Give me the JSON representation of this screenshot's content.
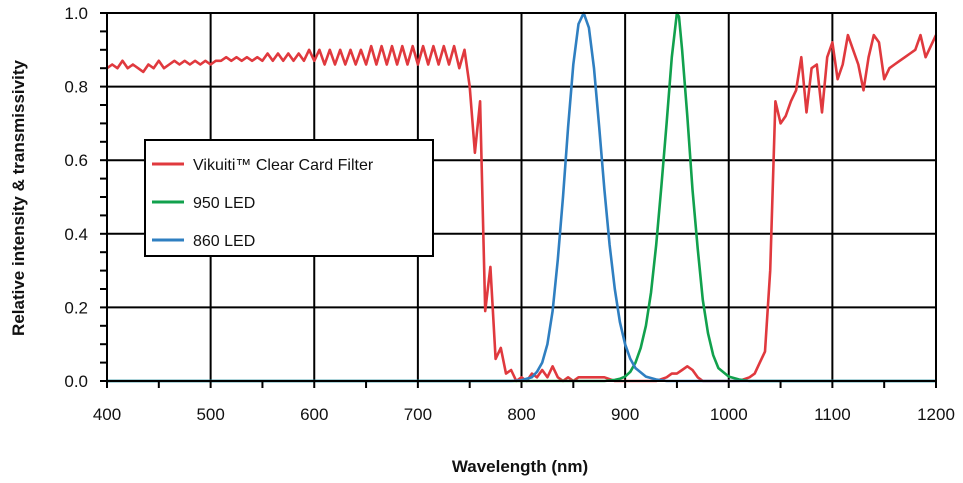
{
  "chart_data": {
    "type": "line",
    "xlabel": "Wavelength (nm)",
    "ylabel": "Relative intensity & transmissivity",
    "xlim": [
      400,
      1200
    ],
    "ylim": [
      0,
      1.0
    ],
    "xticks": [
      "400",
      "500",
      "600",
      "700",
      "800",
      "900",
      "1000",
      "1100",
      "1200"
    ],
    "yticks": [
      "0.0",
      "0.2",
      "0.4",
      "0.6",
      "0.8",
      "1.0"
    ],
    "grid": true,
    "legend_position": "middle-left",
    "series": [
      {
        "name": "Vikuiti™ Clear Card Filter",
        "color": "#e0393e",
        "points": [
          [
            400,
            0.85
          ],
          [
            405,
            0.86
          ],
          [
            410,
            0.85
          ],
          [
            415,
            0.87
          ],
          [
            420,
            0.85
          ],
          [
            425,
            0.86
          ],
          [
            430,
            0.85
          ],
          [
            435,
            0.84
          ],
          [
            440,
            0.86
          ],
          [
            445,
            0.85
          ],
          [
            450,
            0.87
          ],
          [
            455,
            0.85
          ],
          [
            460,
            0.86
          ],
          [
            465,
            0.87
          ],
          [
            470,
            0.86
          ],
          [
            475,
            0.87
          ],
          [
            480,
            0.86
          ],
          [
            485,
            0.87
          ],
          [
            490,
            0.86
          ],
          [
            495,
            0.87
          ],
          [
            500,
            0.86
          ],
          [
            505,
            0.87
          ],
          [
            510,
            0.87
          ],
          [
            515,
            0.88
          ],
          [
            520,
            0.87
          ],
          [
            525,
            0.88
          ],
          [
            530,
            0.87
          ],
          [
            535,
            0.88
          ],
          [
            540,
            0.87
          ],
          [
            545,
            0.88
          ],
          [
            550,
            0.87
          ],
          [
            555,
            0.89
          ],
          [
            560,
            0.87
          ],
          [
            565,
            0.89
          ],
          [
            570,
            0.87
          ],
          [
            575,
            0.89
          ],
          [
            580,
            0.87
          ],
          [
            585,
            0.89
          ],
          [
            590,
            0.87
          ],
          [
            595,
            0.9
          ],
          [
            600,
            0.87
          ],
          [
            605,
            0.9
          ],
          [
            610,
            0.86
          ],
          [
            615,
            0.9
          ],
          [
            620,
            0.86
          ],
          [
            625,
            0.9
          ],
          [
            630,
            0.86
          ],
          [
            635,
            0.9
          ],
          [
            640,
            0.86
          ],
          [
            645,
            0.9
          ],
          [
            650,
            0.86
          ],
          [
            655,
            0.91
          ],
          [
            660,
            0.86
          ],
          [
            665,
            0.91
          ],
          [
            670,
            0.86
          ],
          [
            675,
            0.91
          ],
          [
            680,
            0.86
          ],
          [
            685,
            0.91
          ],
          [
            690,
            0.86
          ],
          [
            695,
            0.91
          ],
          [
            700,
            0.86
          ],
          [
            705,
            0.91
          ],
          [
            710,
            0.86
          ],
          [
            715,
            0.91
          ],
          [
            720,
            0.86
          ],
          [
            725,
            0.91
          ],
          [
            730,
            0.86
          ],
          [
            735,
            0.91
          ],
          [
            740,
            0.85
          ],
          [
            745,
            0.9
          ],
          [
            750,
            0.8
          ],
          [
            755,
            0.62
          ],
          [
            760,
            0.76
          ],
          [
            765,
            0.19
          ],
          [
            770,
            0.31
          ],
          [
            775,
            0.06
          ],
          [
            780,
            0.09
          ],
          [
            785,
            0.02
          ],
          [
            790,
            0.03
          ],
          [
            795,
            0.0
          ],
          [
            800,
            0.01
          ],
          [
            805,
            0.0
          ],
          [
            810,
            0.02
          ],
          [
            815,
            0.01
          ],
          [
            820,
            0.03
          ],
          [
            825,
            0.01
          ],
          [
            830,
            0.04
          ],
          [
            835,
            0.01
          ],
          [
            840,
            0.0
          ],
          [
            845,
            0.01
          ],
          [
            850,
            0.0
          ],
          [
            855,
            0.01
          ],
          [
            860,
            0.01
          ],
          [
            870,
            0.01
          ],
          [
            880,
            0.01
          ],
          [
            890,
            0.0
          ],
          [
            900,
            0.0
          ],
          [
            910,
            0.0
          ],
          [
            920,
            0.0
          ],
          [
            930,
            0.0
          ],
          [
            940,
            0.01
          ],
          [
            945,
            0.02
          ],
          [
            950,
            0.02
          ],
          [
            955,
            0.03
          ],
          [
            960,
            0.04
          ],
          [
            965,
            0.03
          ],
          [
            970,
            0.01
          ],
          [
            975,
            0.0
          ],
          [
            980,
            0.0
          ],
          [
            990,
            0.0
          ],
          [
            1000,
            0.0
          ],
          [
            1010,
            0.0
          ],
          [
            1020,
            0.01
          ],
          [
            1025,
            0.02
          ],
          [
            1030,
            0.05
          ],
          [
            1035,
            0.08
          ],
          [
            1040,
            0.3
          ],
          [
            1045,
            0.76
          ],
          [
            1050,
            0.7
          ],
          [
            1055,
            0.72
          ],
          [
            1060,
            0.76
          ],
          [
            1065,
            0.79
          ],
          [
            1070,
            0.88
          ],
          [
            1075,
            0.73
          ],
          [
            1080,
            0.85
          ],
          [
            1085,
            0.86
          ],
          [
            1090,
            0.73
          ],
          [
            1095,
            0.88
          ],
          [
            1100,
            0.92
          ],
          [
            1105,
            0.82
          ],
          [
            1110,
            0.86
          ],
          [
            1115,
            0.94
          ],
          [
            1120,
            0.9
          ],
          [
            1125,
            0.86
          ],
          [
            1130,
            0.79
          ],
          [
            1135,
            0.88
          ],
          [
            1140,
            0.94
          ],
          [
            1145,
            0.92
          ],
          [
            1150,
            0.82
          ],
          [
            1155,
            0.85
          ],
          [
            1160,
            0.86
          ],
          [
            1165,
            0.87
          ],
          [
            1170,
            0.88
          ],
          [
            1175,
            0.89
          ],
          [
            1180,
            0.9
          ],
          [
            1185,
            0.94
          ],
          [
            1190,
            0.88
          ],
          [
            1200,
            0.94
          ]
        ]
      },
      {
        "name": "950 LED",
        "color": "#11a14d",
        "points": [
          [
            400,
            0.0
          ],
          [
            880,
            0.0
          ],
          [
            890,
            0.003
          ],
          [
            895,
            0.006
          ],
          [
            900,
            0.012
          ],
          [
            905,
            0.025
          ],
          [
            910,
            0.05
          ],
          [
            915,
            0.09
          ],
          [
            920,
            0.15
          ],
          [
            925,
            0.24
          ],
          [
            930,
            0.37
          ],
          [
            935,
            0.53
          ],
          [
            940,
            0.7
          ],
          [
            945,
            0.88
          ],
          [
            950,
            1.0
          ],
          [
            952,
            0.99
          ],
          [
            955,
            0.9
          ],
          [
            960,
            0.72
          ],
          [
            965,
            0.52
          ],
          [
            970,
            0.36
          ],
          [
            975,
            0.22
          ],
          [
            980,
            0.13
          ],
          [
            985,
            0.07
          ],
          [
            990,
            0.035
          ],
          [
            1000,
            0.012
          ],
          [
            1010,
            0.004
          ],
          [
            1020,
            0.0
          ],
          [
            1200,
            0.0
          ]
        ]
      },
      {
        "name": "860 LED",
        "color": "#2f7fc1",
        "points": [
          [
            400,
            0.0
          ],
          [
            790,
            0.0
          ],
          [
            800,
            0.002
          ],
          [
            810,
            0.01
          ],
          [
            815,
            0.025
          ],
          [
            820,
            0.05
          ],
          [
            825,
            0.1
          ],
          [
            830,
            0.19
          ],
          [
            835,
            0.33
          ],
          [
            840,
            0.5
          ],
          [
            845,
            0.69
          ],
          [
            850,
            0.86
          ],
          [
            855,
            0.97
          ],
          [
            860,
            1.0
          ],
          [
            865,
            0.96
          ],
          [
            870,
            0.85
          ],
          [
            875,
            0.69
          ],
          [
            880,
            0.52
          ],
          [
            885,
            0.37
          ],
          [
            890,
            0.25
          ],
          [
            895,
            0.16
          ],
          [
            900,
            0.1
          ],
          [
            905,
            0.06
          ],
          [
            910,
            0.035
          ],
          [
            920,
            0.012
          ],
          [
            930,
            0.004
          ],
          [
            940,
            0.0
          ],
          [
            1200,
            0.0
          ]
        ]
      }
    ],
    "legend_trademark": "™"
  }
}
